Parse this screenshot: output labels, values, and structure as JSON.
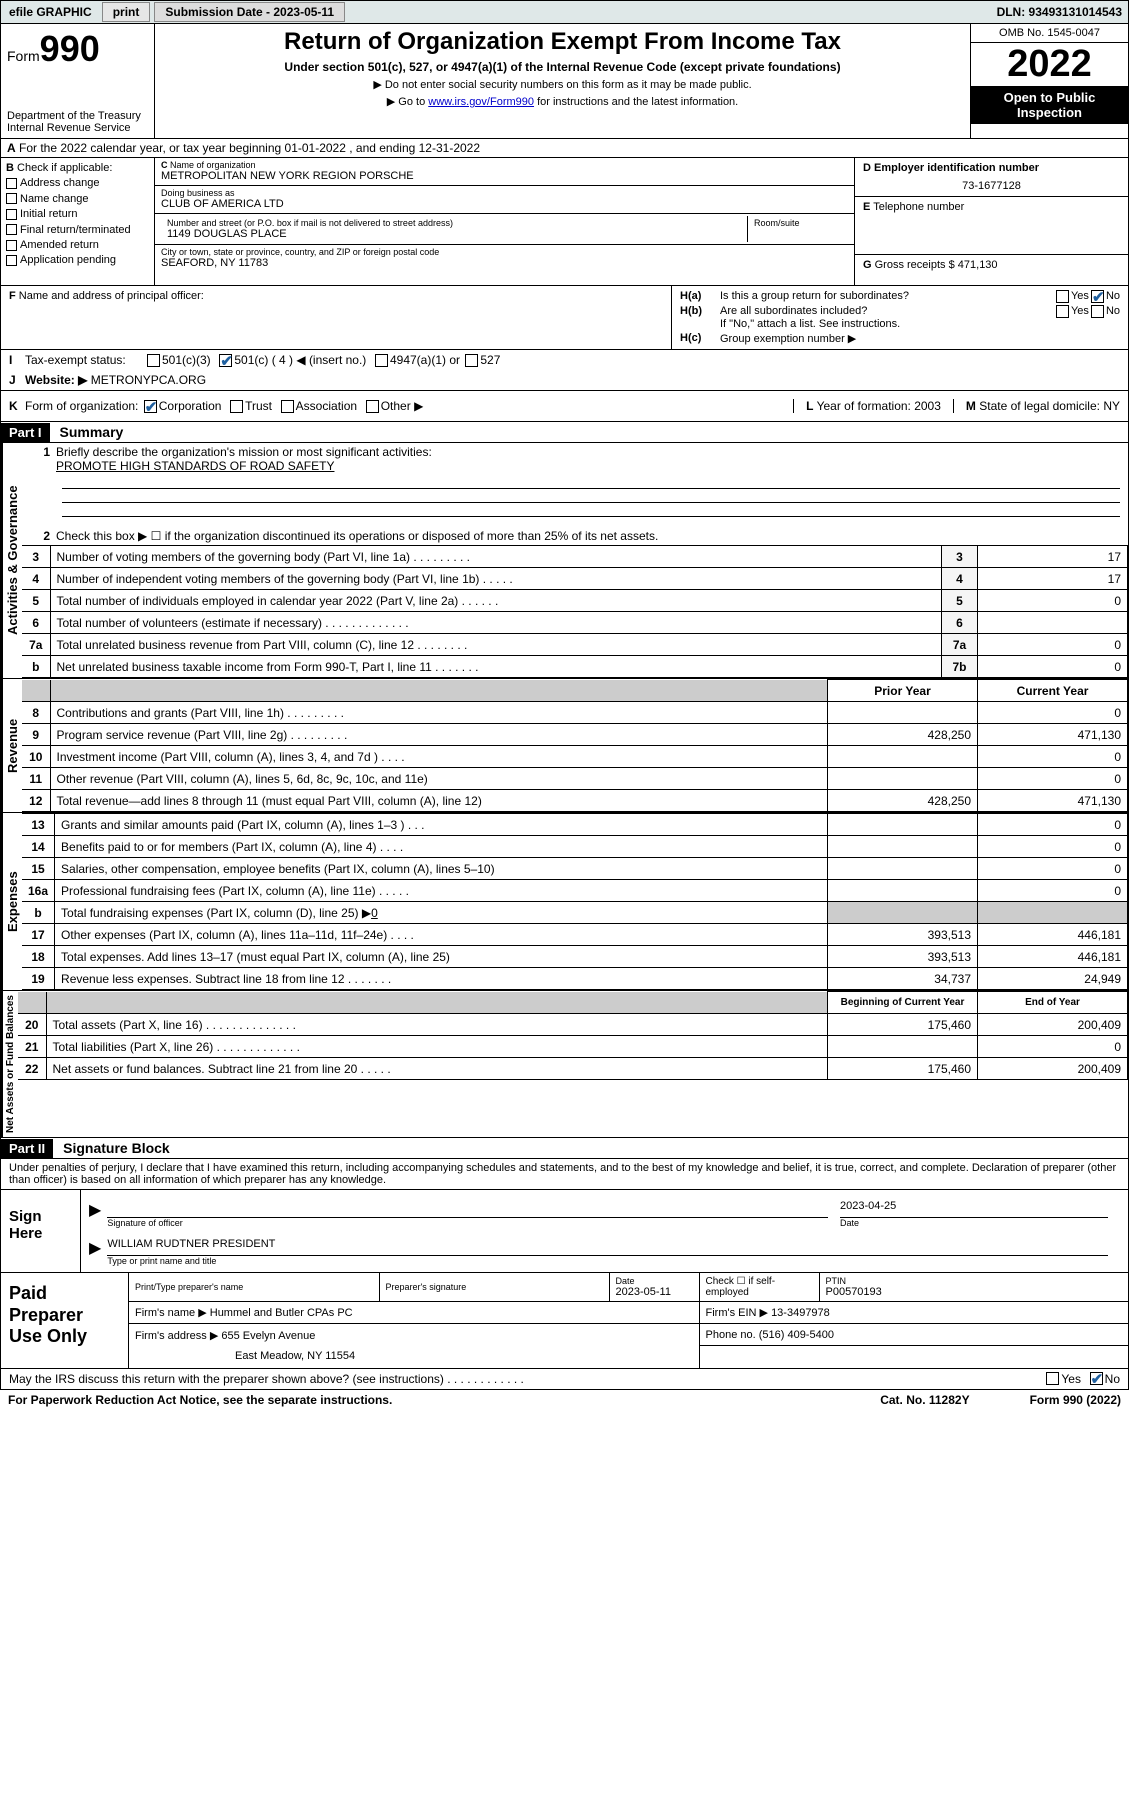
{
  "topbar": {
    "efile": "efile GRAPHIC",
    "print": "print",
    "submission": "Submission Date - 2023-05-11",
    "dln": "DLN: 93493131014543"
  },
  "header": {
    "form_word": "Form",
    "form_no": "990",
    "dept": "Department of the Treasury",
    "irs": "Internal Revenue Service",
    "title": "Return of Organization Exempt From Income Tax",
    "sub": "Under section 501(c), 527, or 4947(a)(1) of the Internal Revenue Code (except private foundations)",
    "note1": "▶ Do not enter social security numbers on this form as it may be made public.",
    "note2_pre": "▶ Go to ",
    "note2_link": "www.irs.gov/Form990",
    "note2_post": " for instructions and the latest information.",
    "omb": "OMB No. 1545-0047",
    "year": "2022",
    "open": "Open to Public Inspection"
  },
  "A": {
    "text": "For the 2022 calendar year, or tax year beginning 01-01-2022    , and ending 12-31-2022"
  },
  "B": {
    "label": "Check if applicable:",
    "opts": [
      "Address change",
      "Name change",
      "Initial return",
      "Final return/terminated",
      "Amended return",
      "Application pending"
    ]
  },
  "C": {
    "name_lbl": "Name of organization",
    "name": "METROPOLITAN NEW YORK REGION PORSCHE",
    "dba_lbl": "Doing business as",
    "dba": "CLUB OF AMERICA LTD",
    "street_lbl": "Number and street (or P.O. box if mail is not delivered to street address)",
    "street": "1149 DOUGLAS PLACE",
    "room_lbl": "Room/suite",
    "city_lbl": "City or town, state or province, country, and ZIP or foreign postal code",
    "city": "SEAFORD, NY  11783"
  },
  "D": {
    "lbl": "Employer identification number",
    "val": "73-1677128"
  },
  "E": {
    "lbl": "Telephone number"
  },
  "G": {
    "lbl": "Gross receipts $",
    "val": "471,130"
  },
  "F": {
    "lbl": "Name and address of principal officer:"
  },
  "H": {
    "a": "Is this a group return for subordinates?",
    "b": "Are all subordinates included?",
    "bnote": "If \"No,\" attach a list. See instructions.",
    "c": "Group exemption number ▶"
  },
  "I": {
    "lbl": "Tax-exempt status:",
    "o1": "501(c)(3)",
    "o2": "501(c) ( 4 ) ◀ (insert no.)",
    "o3": "4947(a)(1) or",
    "o4": "527"
  },
  "J": {
    "lbl": "Website: ▶",
    "val": "METRONYPCA.ORG"
  },
  "K": {
    "lbl": "Form of organization:",
    "opts": [
      "Corporation",
      "Trust",
      "Association",
      "Other ▶"
    ],
    "L": "Year of formation: 2003",
    "M": "State of legal domicile: NY"
  },
  "part1": {
    "hdr": "Part I",
    "title": "Summary",
    "q1": "Briefly describe the organization's mission or most significant activities:",
    "q1v": "PROMOTE HIGH STANDARDS OF ROAD SAFETY",
    "q2": "Check this box ▶ ☐  if the organization discontinued its operations or disposed of more than 25% of its net assets.",
    "rows_gov": [
      {
        "n": "3",
        "t": "Number of voting members of the governing body (Part VI, line 1a)  .  .  .  .  .  .  .  .  .",
        "nb": "3",
        "v": "17"
      },
      {
        "n": "4",
        "t": "Number of independent voting members of the governing body (Part VI, line 1b)  .  .  .  .  .",
        "nb": "4",
        "v": "17"
      },
      {
        "n": "5",
        "t": "Total number of individuals employed in calendar year 2022 (Part V, line 2a)  .  .  .  .  .  .",
        "nb": "5",
        "v": "0"
      },
      {
        "n": "6",
        "t": "Total number of volunteers (estimate if necessary)  .  .  .  .  .  .  .  .  .  .  .  .  .",
        "nb": "6",
        "v": ""
      },
      {
        "n": "7a",
        "t": "Total unrelated business revenue from Part VIII, column (C), line 12  .  .  .  .  .  .  .  .",
        "nb": "7a",
        "v": "0"
      },
      {
        "n": "b",
        "t": "Net unrelated business taxable income from Form 990-T, Part I, line 11  .  .  .  .  .  .  .",
        "nb": "7b",
        "v": "0"
      }
    ],
    "rev_hdr_py": "Prior Year",
    "rev_hdr_cy": "Current Year",
    "rows_rev": [
      {
        "n": "8",
        "t": "Contributions and grants (Part VIII, line 1h)  .  .  .  .  .  .  .  .  .",
        "py": "",
        "cy": "0"
      },
      {
        "n": "9",
        "t": "Program service revenue (Part VIII, line 2g)  .  .  .  .  .  .  .  .  .",
        "py": "428,250",
        "cy": "471,130"
      },
      {
        "n": "10",
        "t": "Investment income (Part VIII, column (A), lines 3, 4, and 7d )  .  .  .  .",
        "py": "",
        "cy": "0"
      },
      {
        "n": "11",
        "t": "Other revenue (Part VIII, column (A), lines 5, 6d, 8c, 9c, 10c, and 11e)",
        "py": "",
        "cy": "0"
      },
      {
        "n": "12",
        "t": "Total revenue—add lines 8 through 11 (must equal Part VIII, column (A), line 12)",
        "py": "428,250",
        "cy": "471,130"
      }
    ],
    "rows_exp": [
      {
        "n": "13",
        "t": "Grants and similar amounts paid (Part IX, column (A), lines 1–3 )  .  .  .",
        "py": "",
        "cy": "0"
      },
      {
        "n": "14",
        "t": "Benefits paid to or for members (Part IX, column (A), line 4)  .  .  .  .",
        "py": "",
        "cy": "0"
      },
      {
        "n": "15",
        "t": "Salaries, other compensation, employee benefits (Part IX, column (A), lines 5–10)",
        "py": "",
        "cy": "0"
      },
      {
        "n": "16a",
        "t": "Professional fundraising fees (Part IX, column (A), line 11e)  .  .  .  .  .",
        "py": "",
        "cy": "0"
      }
    ],
    "row_b": {
      "n": "b",
      "t": "Total fundraising expenses (Part IX, column (D), line 25) ▶",
      "v": "0"
    },
    "rows_exp2": [
      {
        "n": "17",
        "t": "Other expenses (Part IX, column (A), lines 11a–11d, 11f–24e)  .  .  .  .",
        "py": "393,513",
        "cy": "446,181"
      },
      {
        "n": "18",
        "t": "Total expenses. Add lines 13–17 (must equal Part IX, column (A), line 25)",
        "py": "393,513",
        "cy": "446,181"
      },
      {
        "n": "19",
        "t": "Revenue less expenses. Subtract line 18 from line 12  .  .  .  .  .  .  .",
        "py": "34,737",
        "cy": "24,949"
      }
    ],
    "na_hdr_b": "Beginning of Current Year",
    "na_hdr_e": "End of Year",
    "rows_na": [
      {
        "n": "20",
        "t": "Total assets (Part X, line 16)  .  .  .  .  .  .  .  .  .  .  .  .  .  .",
        "py": "175,460",
        "cy": "200,409"
      },
      {
        "n": "21",
        "t": "Total liabilities (Part X, line 26)  .  .  .  .  .  .  .  .  .  .  .  .  .",
        "py": "",
        "cy": "0"
      },
      {
        "n": "22",
        "t": "Net assets or fund balances. Subtract line 21 from line 20  .  .  .  .  .",
        "py": "175,460",
        "cy": "200,409"
      }
    ]
  },
  "part2": {
    "hdr": "Part II",
    "title": "Signature Block",
    "decl": "Under penalties of perjury, I declare that I have examined this return, including accompanying schedules and statements, and to the best of my knowledge and belief, it is true, correct, and complete. Declaration of preparer (other than officer) is based on all information of which preparer has any knowledge.",
    "sign_here": "Sign Here",
    "sig_officer": "Signature of officer",
    "date_lbl": "Date",
    "date_v": "2023-04-25",
    "officer_name": "WILLIAM RUDTNER  PRESIDENT",
    "name_title": "Type or print name and title",
    "paid": "Paid Preparer Use Only",
    "prep_name_lbl": "Print/Type preparer's name",
    "prep_sig_lbl": "Preparer's signature",
    "prep_date_lbl": "Date",
    "prep_date": "2023-05-11",
    "self_emp": "Check ☐ if self-employed",
    "ptin_lbl": "PTIN",
    "ptin": "P00570193",
    "firm_name_lbl": "Firm's name    ▶",
    "firm_name": "Hummel and Butler CPAs PC",
    "firm_ein_lbl": "Firm's EIN ▶",
    "firm_ein": "13-3497978",
    "firm_addr_lbl": "Firm's address ▶",
    "firm_addr1": "655 Evelyn Avenue",
    "firm_addr2": "East Meadow, NY  11554",
    "phone_lbl": "Phone no.",
    "phone": "(516) 409-5400",
    "discuss": "May the IRS discuss this return with the preparer shown above? (see instructions)   .  .  .  .  .  .  .  .  .  .  .  .",
    "paperwork": "For Paperwork Reduction Act Notice, see the separate instructions.",
    "cat": "Cat. No. 11282Y",
    "formno": "Form 990 (2022)"
  },
  "side_labels": {
    "gov": "Activities & Governance",
    "rev": "Revenue",
    "exp": "Expenses",
    "na": "Net Assets or Fund Balances"
  },
  "misc": {
    "yes": "Yes",
    "no": "No",
    "H_a": "H(a)",
    "H_b": "H(b)",
    "H_c": "H(c)",
    "B": "B",
    "C": "C",
    "D": "D",
    "E": "E",
    "F": "F",
    "G": "G",
    "I": "I",
    "J": "J",
    "K": "K",
    "L": "L",
    "M": "M",
    "A": "A"
  }
}
